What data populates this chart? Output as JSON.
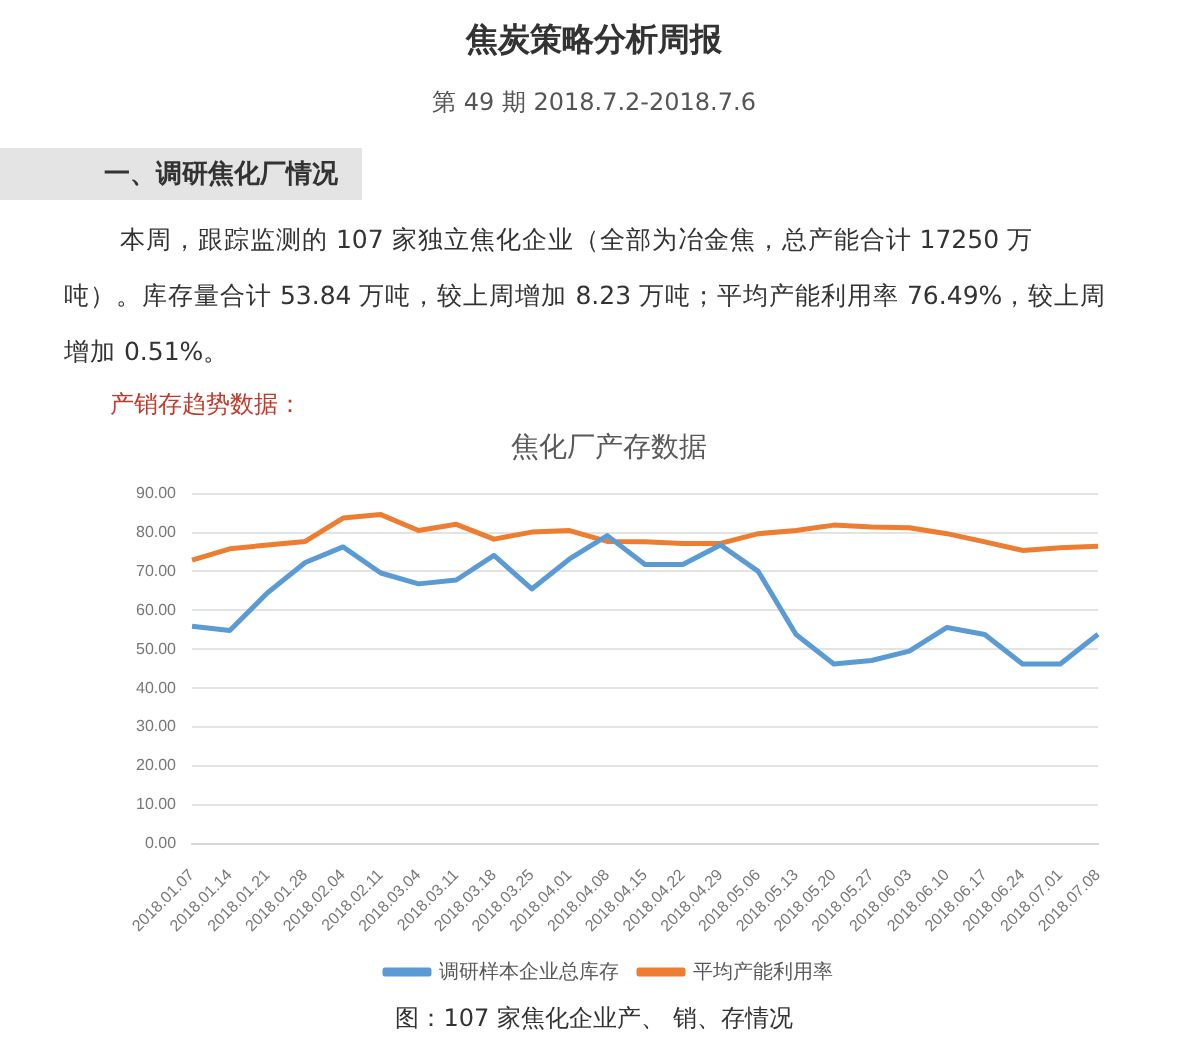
{
  "chart_data": {
    "type": "line",
    "title": "焦化厂产存数据",
    "annotations": [
      "焦炭策略分析周报",
      "第 49 期  2018.7.2-2018.7.6",
      "一、调研焦化厂情况",
      "本周，跟踪监测的 107 家独立焦化企业（全部为冶金焦，总产能合计 17250 万吨）。库存量合计 53.84 万吨，较上周增加 8.23 万吨；平均产能利用率 76.49%，较上周增加 0.51%。",
      "产销存趋势数据：",
      "图：107 家焦化企业产、 销、存情况"
    ],
    "categories": [
      "2018.01.07",
      "2018.01.14",
      "2018.01.21",
      "2018.01.28",
      "2018.02.04",
      "2018.02.11",
      "2018.03.04",
      "2018.03.11",
      "2018.03.18",
      "2018.03.25",
      "2018.04.01",
      "2018.04.08",
      "2018.04.15",
      "2018.04.22",
      "2018.04.29",
      "2018.05.06",
      "2018.05.13",
      "2018.05.20",
      "2018.05.27",
      "2018.06.03",
      "2018.06.10",
      "2018.06.17",
      "2018.06.24",
      "2018.07.01",
      "2018.07.08"
    ],
    "series": [
      {
        "name": "调研样本企业总库存",
        "color": "#5b9bd5",
        "values": [
          55.9,
          54.8,
          64.5,
          72.3,
          76.3,
          69.6,
          66.8,
          67.8,
          74.1,
          65.5,
          73.2,
          79.2,
          71.8,
          71.8,
          76.8,
          70.0,
          53.8,
          46.2,
          47.1,
          49.5,
          55.6,
          53.8,
          46.2,
          46.2,
          53.84
        ]
      },
      {
        "name": "平均产能利用率",
        "color": "#ed7d31",
        "values": [
          72.9,
          75.8,
          76.8,
          77.7,
          83.7,
          84.6,
          80.5,
          82.1,
          78.3,
          80.1,
          80.5,
          77.7,
          77.6,
          77.2,
          77.2,
          79.7,
          80.5,
          81.9,
          81.4,
          81.2,
          79.7,
          77.6,
          75.4,
          76.1,
          76.49
        ]
      }
    ],
    "ylim": [
      0,
      90
    ],
    "yticks": [
      {
        "value": 0,
        "label": "0.00"
      },
      {
        "value": 10,
        "label": "10.00"
      },
      {
        "value": 20,
        "label": "20.00"
      },
      {
        "value": 30,
        "label": "30.00"
      },
      {
        "value": 40,
        "label": "40.00"
      },
      {
        "value": 50,
        "label": "50.00"
      },
      {
        "value": 60,
        "label": "60.00"
      },
      {
        "value": 70,
        "label": "70.00"
      },
      {
        "value": 80,
        "label": "80.00"
      },
      {
        "value": 90,
        "label": "90.00"
      }
    ],
    "grid": "y",
    "legend": "bottom",
    "marker": "none",
    "line_style": "solid"
  }
}
